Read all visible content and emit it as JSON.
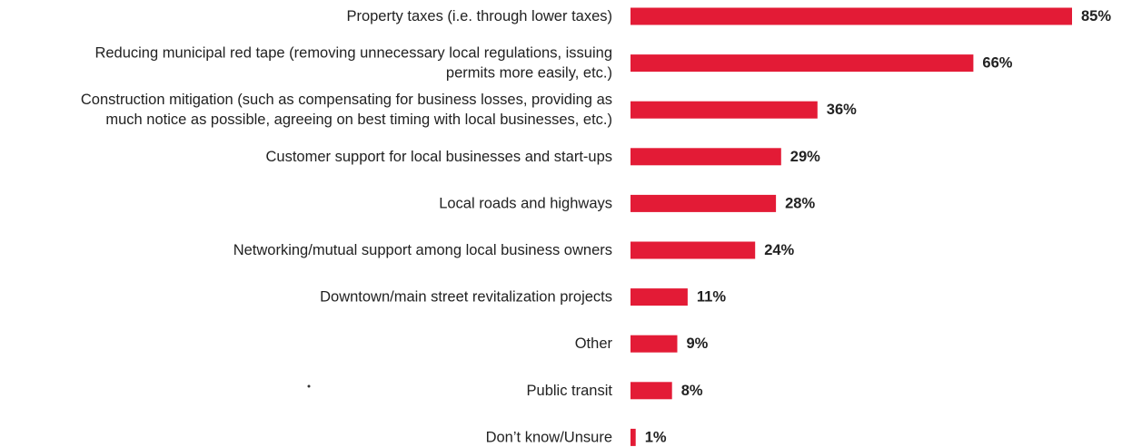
{
  "chart_data": {
    "type": "bar",
    "orientation": "horizontal",
    "title": "",
    "xlabel": "",
    "ylabel": "",
    "xlim": [
      0,
      85
    ],
    "grid": false,
    "legend": "none",
    "bar_color": "#e31b36",
    "categories": [
      [
        "Property taxes (i.e. through lower taxes)"
      ],
      [
        "Reducing municipal red tape (removing unnecessary local regulations, issuing",
        "permits more easily, etc.)"
      ],
      [
        "Construction mitigation (such as compensating for business losses, providing as",
        "much notice as possible, agreeing on best timing with local businesses, etc.)"
      ],
      [
        "Customer support for local businesses and start-ups"
      ],
      [
        "Local roads and highways"
      ],
      [
        "Networking/mutual support among local business owners"
      ],
      [
        "Downtown/main street revitalization projects"
      ],
      [
        "Other"
      ],
      [
        "Public transit"
      ],
      [
        "Don’t know/Unsure"
      ]
    ],
    "values": [
      85,
      66,
      36,
      29,
      28,
      24,
      11,
      9,
      8,
      1
    ],
    "value_labels": [
      "85%",
      "66%",
      "36%",
      "29%",
      "28%",
      "24%",
      "11%",
      "9%",
      "8%",
      "1%"
    ]
  }
}
